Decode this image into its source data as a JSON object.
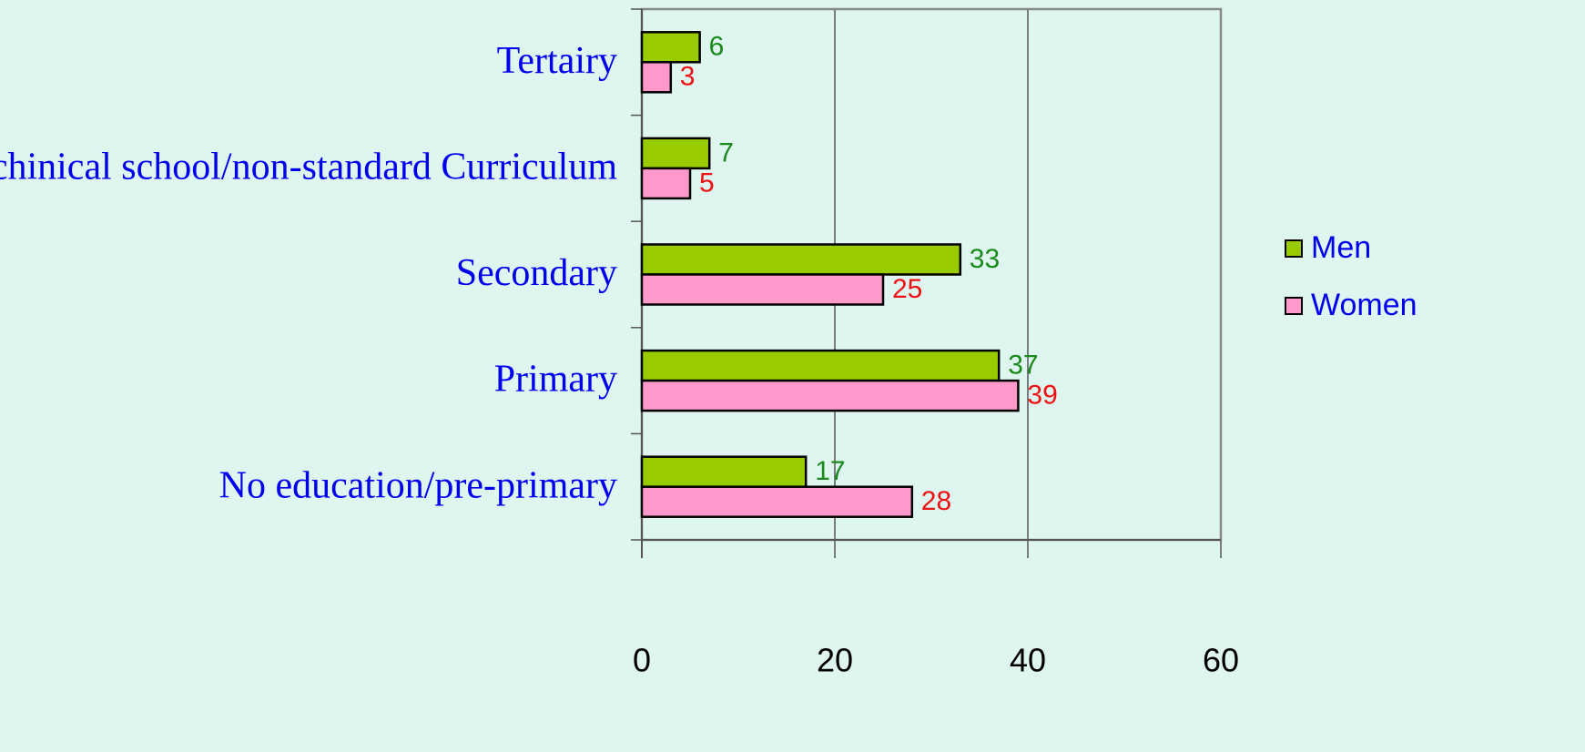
{
  "chart_data": {
    "type": "hbar",
    "categories": [
      "Tertairy",
      "techinical school/non-standard Curriculum",
      "Secondary",
      "Primary",
      "No education/pre-primary"
    ],
    "series": [
      {
        "name": "Men",
        "color": "#99cc00",
        "label_color": "#1a8a1a",
        "values": [
          6,
          7,
          33,
          37,
          17
        ]
      },
      {
        "name": "Women",
        "color": "#ff99cc",
        "label_color": "#ee1111",
        "values": [
          3,
          5,
          25,
          39,
          28
        ]
      }
    ],
    "xlim": [
      0,
      60
    ],
    "xticks": [
      0,
      20,
      40,
      60
    ],
    "grid": true,
    "legend": "right"
  }
}
